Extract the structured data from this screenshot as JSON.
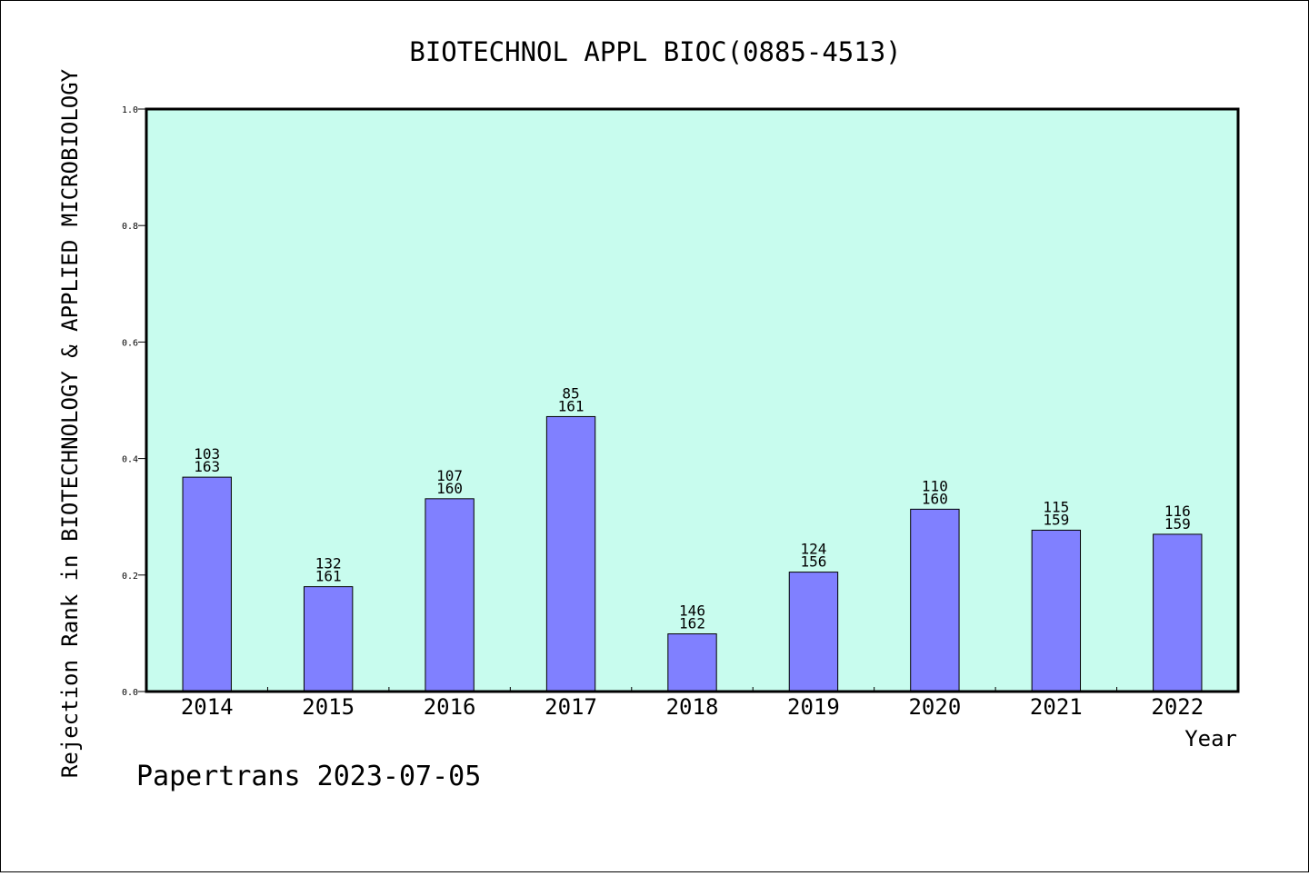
{
  "chart_data": {
    "type": "bar",
    "title": "BIOTECHNOL APPL BIOC(0885-4513)",
    "xlabel": "Year",
    "ylabel": "Rejection Rank in BIOTECHNOLOGY & APPLIED MICROBIOLOGY",
    "ylim": [
      0,
      1
    ],
    "yticks": [
      "0.0",
      "0.2",
      "0.4",
      "0.6",
      "0.8",
      "1.0"
    ],
    "categories": [
      "2014",
      "2015",
      "2016",
      "2017",
      "2018",
      "2019",
      "2020",
      "2021",
      "2022"
    ],
    "values": [
      0.368,
      0.18,
      0.331,
      0.472,
      0.099,
      0.205,
      0.313,
      0.277,
      0.27
    ],
    "labels_top": [
      "103",
      "132",
      "107",
      "85",
      "146",
      "124",
      "110",
      "115",
      "116"
    ],
    "labels_bottom": [
      "163",
      "161",
      "160",
      "161",
      "162",
      "156",
      "160",
      "159",
      "159"
    ],
    "grid": false,
    "colors": {
      "bar_fill": "#8080ff",
      "plot_background": "#c8fcee",
      "axis": "#000000"
    }
  },
  "footer": {
    "text": "Papertrans 2023-07-05"
  }
}
